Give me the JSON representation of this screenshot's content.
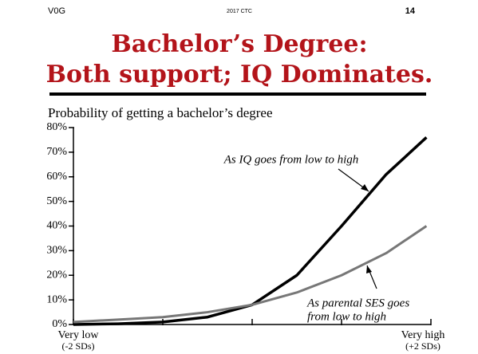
{
  "header": {
    "left": "V0G",
    "center": "2017 CTC",
    "right": "14"
  },
  "title_lines": [
    "Bachelor’s Degree:",
    "Both support; IQ Dominates."
  ],
  "chart_data": {
    "type": "line",
    "title": "Probability of getting a bachelor’s degree",
    "x": [
      -2,
      -1.5,
      -1,
      -0.5,
      0,
      0.5,
      1,
      1.5,
      1.95
    ],
    "series": [
      {
        "name": "IQ",
        "color": "#000000",
        "values": [
          0,
          0.3,
          1,
          3,
          8,
          20,
          40,
          61,
          76
        ]
      },
      {
        "name": "Parental SES",
        "color": "#777777",
        "values": [
          1,
          2,
          3,
          5,
          8,
          13,
          20,
          29,
          40
        ]
      }
    ],
    "xlim": [
      -2,
      2
    ],
    "xticks": [
      {
        "value": -2,
        "label": "Very low",
        "sublabel": "(-2 SDs)"
      },
      {
        "value": -1,
        "label": null
      },
      {
        "value": 0,
        "label": null
      },
      {
        "value": 1,
        "label": null
      },
      {
        "value": 2,
        "label": "Very high",
        "sublabel": "(+2 SDs)"
      }
    ],
    "ylim": [
      0,
      80
    ],
    "yticks": [
      {
        "value": 0,
        "label": "0%"
      },
      {
        "value": 10,
        "label": "10%"
      },
      {
        "value": 20,
        "label": "20%"
      },
      {
        "value": 30,
        "label": "30%"
      },
      {
        "value": 40,
        "label": "40%"
      },
      {
        "value": 50,
        "label": "50%"
      },
      {
        "value": 60,
        "label": "60%"
      },
      {
        "value": 70,
        "label": "70%"
      },
      {
        "value": 80,
        "label": "80%"
      }
    ],
    "annotations": [
      "As IQ goes from low to high",
      "As parental SES goes",
      "from low to high"
    ]
  }
}
